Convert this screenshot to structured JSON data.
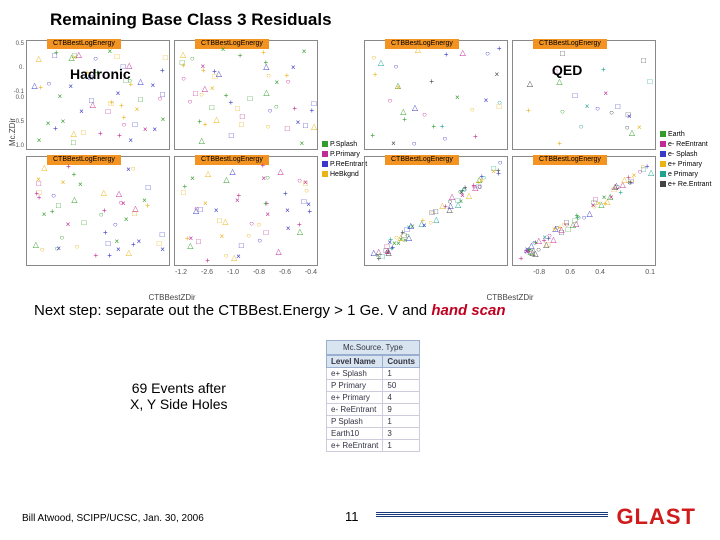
{
  "title": "Remaining Base Class 3 Residuals",
  "charts": {
    "left": {
      "panels": [
        "CTBBestLogEnergy",
        "CTBBestLogEnergy",
        "CTBBestLogEnergy",
        "CTBBestLogEnergy"
      ],
      "ylabel": "Mc.ZDir",
      "xlabel": "CTBBestZDir",
      "note": "Hadronic",
      "colors": {
        "splash": "#349c2b",
        "primary": "#c12b94",
        "reentrant": "#3a39c7",
        "hebkg": "#eab316"
      },
      "legend": [
        {
          "c": "#349c2b",
          "t": "P.Splash"
        },
        {
          "c": "#c12b94",
          "t": "P.Primary"
        },
        {
          "c": "#3a39c7",
          "t": "P.ReEntrant"
        },
        {
          "c": "#eab316",
          "t": "HeBkgnd"
        }
      ],
      "xticks": [
        "-1.2",
        "-2.6",
        "-1.0",
        "-0.8",
        "-0.6",
        "-0.4"
      ],
      "yticks": [
        "0.5",
        "0.",
        "-0.1 0.0",
        "-0.5",
        "-1.0"
      ]
    },
    "right": {
      "panels": [
        "CTBBestLogEnergy",
        "CTBBestLogEnergy",
        "CTBBestLogEnergy",
        "CTBBestLogEnergy"
      ],
      "ylabel": "Mc.ZDir",
      "xlabel": "CTBBestZDir",
      "note": "QED",
      "colors": {
        "earth": "#349c2b",
        "reent": "#c12b94",
        "splash": "#3a39c7",
        "prim2": "#eab316",
        "prim": "#1ea390",
        "reent2": "#444444"
      },
      "legend": [
        {
          "c": "#349c2b",
          "t": "Earth"
        },
        {
          "c": "#c12b94",
          "t": "e- ReEntrant"
        },
        {
          "c": "#3a39c7",
          "t": "e- Splash"
        },
        {
          "c": "#eab316",
          "t": "e+ Primary"
        },
        {
          "c": "#1ea390",
          "t": "e Primary"
        },
        {
          "c": "#444444",
          "t": "e+ Re.Entrant"
        }
      ],
      "xticks": [
        "",
        "-0.8",
        "0.6",
        "0.4",
        "",
        "0.1"
      ],
      "yticks": [
        "",
        "",
        "",
        "",
        ""
      ]
    }
  },
  "nextstep_pre": "Next step: separate out the CTBBest.Energy > 1 Ge. V and ",
  "nextstep_em": "hand scan",
  "events_after_l1": "69 Events after",
  "events_after_l2": "X, Y Side Holes",
  "table": {
    "caption": "Mc.Source. Type",
    "columns": [
      "Level Name",
      "Counts"
    ],
    "rows": [
      [
        "e+ Splash",
        "1"
      ],
      [
        "P Primary",
        "50"
      ],
      [
        "e+ Primary",
        "4"
      ],
      [
        "e- ReEntrant",
        "9"
      ],
      [
        "P Splash",
        "1"
      ],
      [
        "Earth10",
        "3"
      ],
      [
        "e+ ReEntrant",
        "1"
      ]
    ]
  },
  "footer": {
    "author": "Bill Atwood, SCIPP/UCSC, Jan. 30, 2006",
    "page": "11",
    "brand": "GLAST"
  }
}
